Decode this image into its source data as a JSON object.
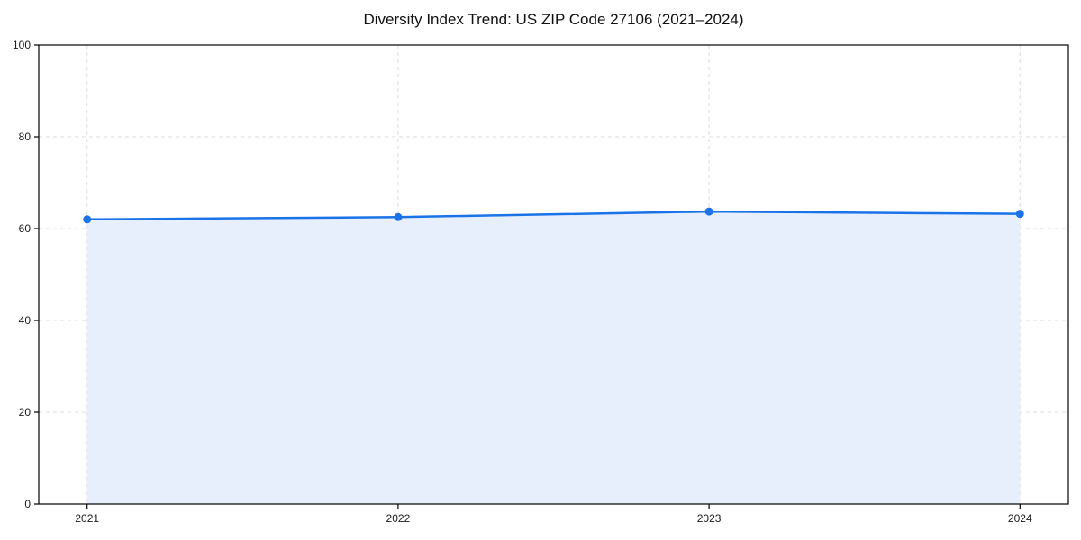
{
  "chart_data": {
    "type": "area",
    "title": "Diversity Index Trend: US ZIP Code 27106 (2021–2024)",
    "x": [
      2021,
      2022,
      2023,
      2024
    ],
    "x_tick_labels": [
      "2021",
      "2022",
      "2023",
      "2024"
    ],
    "series": [
      {
        "name": "Diversity Index",
        "values": [
          62.0,
          62.5,
          63.7,
          63.2
        ]
      }
    ],
    "xlabel": "",
    "ylabel": "",
    "ylim": [
      0,
      100
    ],
    "yticks": [
      0,
      20,
      40,
      60,
      80,
      100
    ],
    "y_tick_labels": [
      "0",
      "20",
      "40",
      "60",
      "80",
      "100"
    ],
    "grid": true,
    "grid_style": "dashed",
    "legend": "none",
    "colors": {
      "line": "#1a73e8",
      "marker": "#1a73e8",
      "fill": "#e7eefc",
      "grid": "#dcdcdc",
      "axis": "#000000",
      "tick_text": "#1a1a1a"
    }
  }
}
